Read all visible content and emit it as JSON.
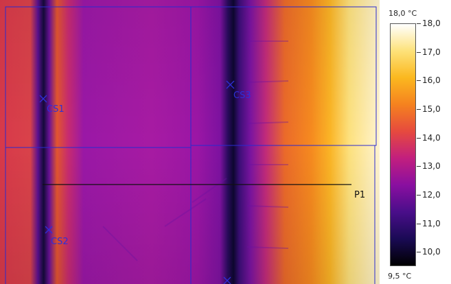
{
  "scale": {
    "max_label": "18,0 °C",
    "min_label": "9,5 °C",
    "min_value": 9.5,
    "max_value": 18.0,
    "ticks": [
      {
        "value": 18.0,
        "label": "18,0"
      },
      {
        "value": 17.0,
        "label": "17,0"
      },
      {
        "value": 16.0,
        "label": "16,0"
      },
      {
        "value": 15.0,
        "label": "15,0"
      },
      {
        "value": 14.0,
        "label": "14,0"
      },
      {
        "value": 13.0,
        "label": "13,0"
      },
      {
        "value": 12.0,
        "label": "12,0"
      },
      {
        "value": 11.0,
        "label": "11,0"
      },
      {
        "value": 10.0,
        "label": "10,0"
      }
    ],
    "colors": [
      "#000000",
      "#1a0a55",
      "#4a0e8a",
      "#8a0fa0",
      "#c21f7e",
      "#e64a3e",
      "#f5821f",
      "#fbb81f",
      "#fde27a",
      "#ffffff"
    ]
  },
  "markers": {
    "cs1": "CS1",
    "cs2": "CS2",
    "cs3": "CS3",
    "p1": "P1"
  },
  "colors": {
    "frame": "#2a2ad0",
    "cursor": "#2f2fd8",
    "profile_line": "#111111"
  }
}
